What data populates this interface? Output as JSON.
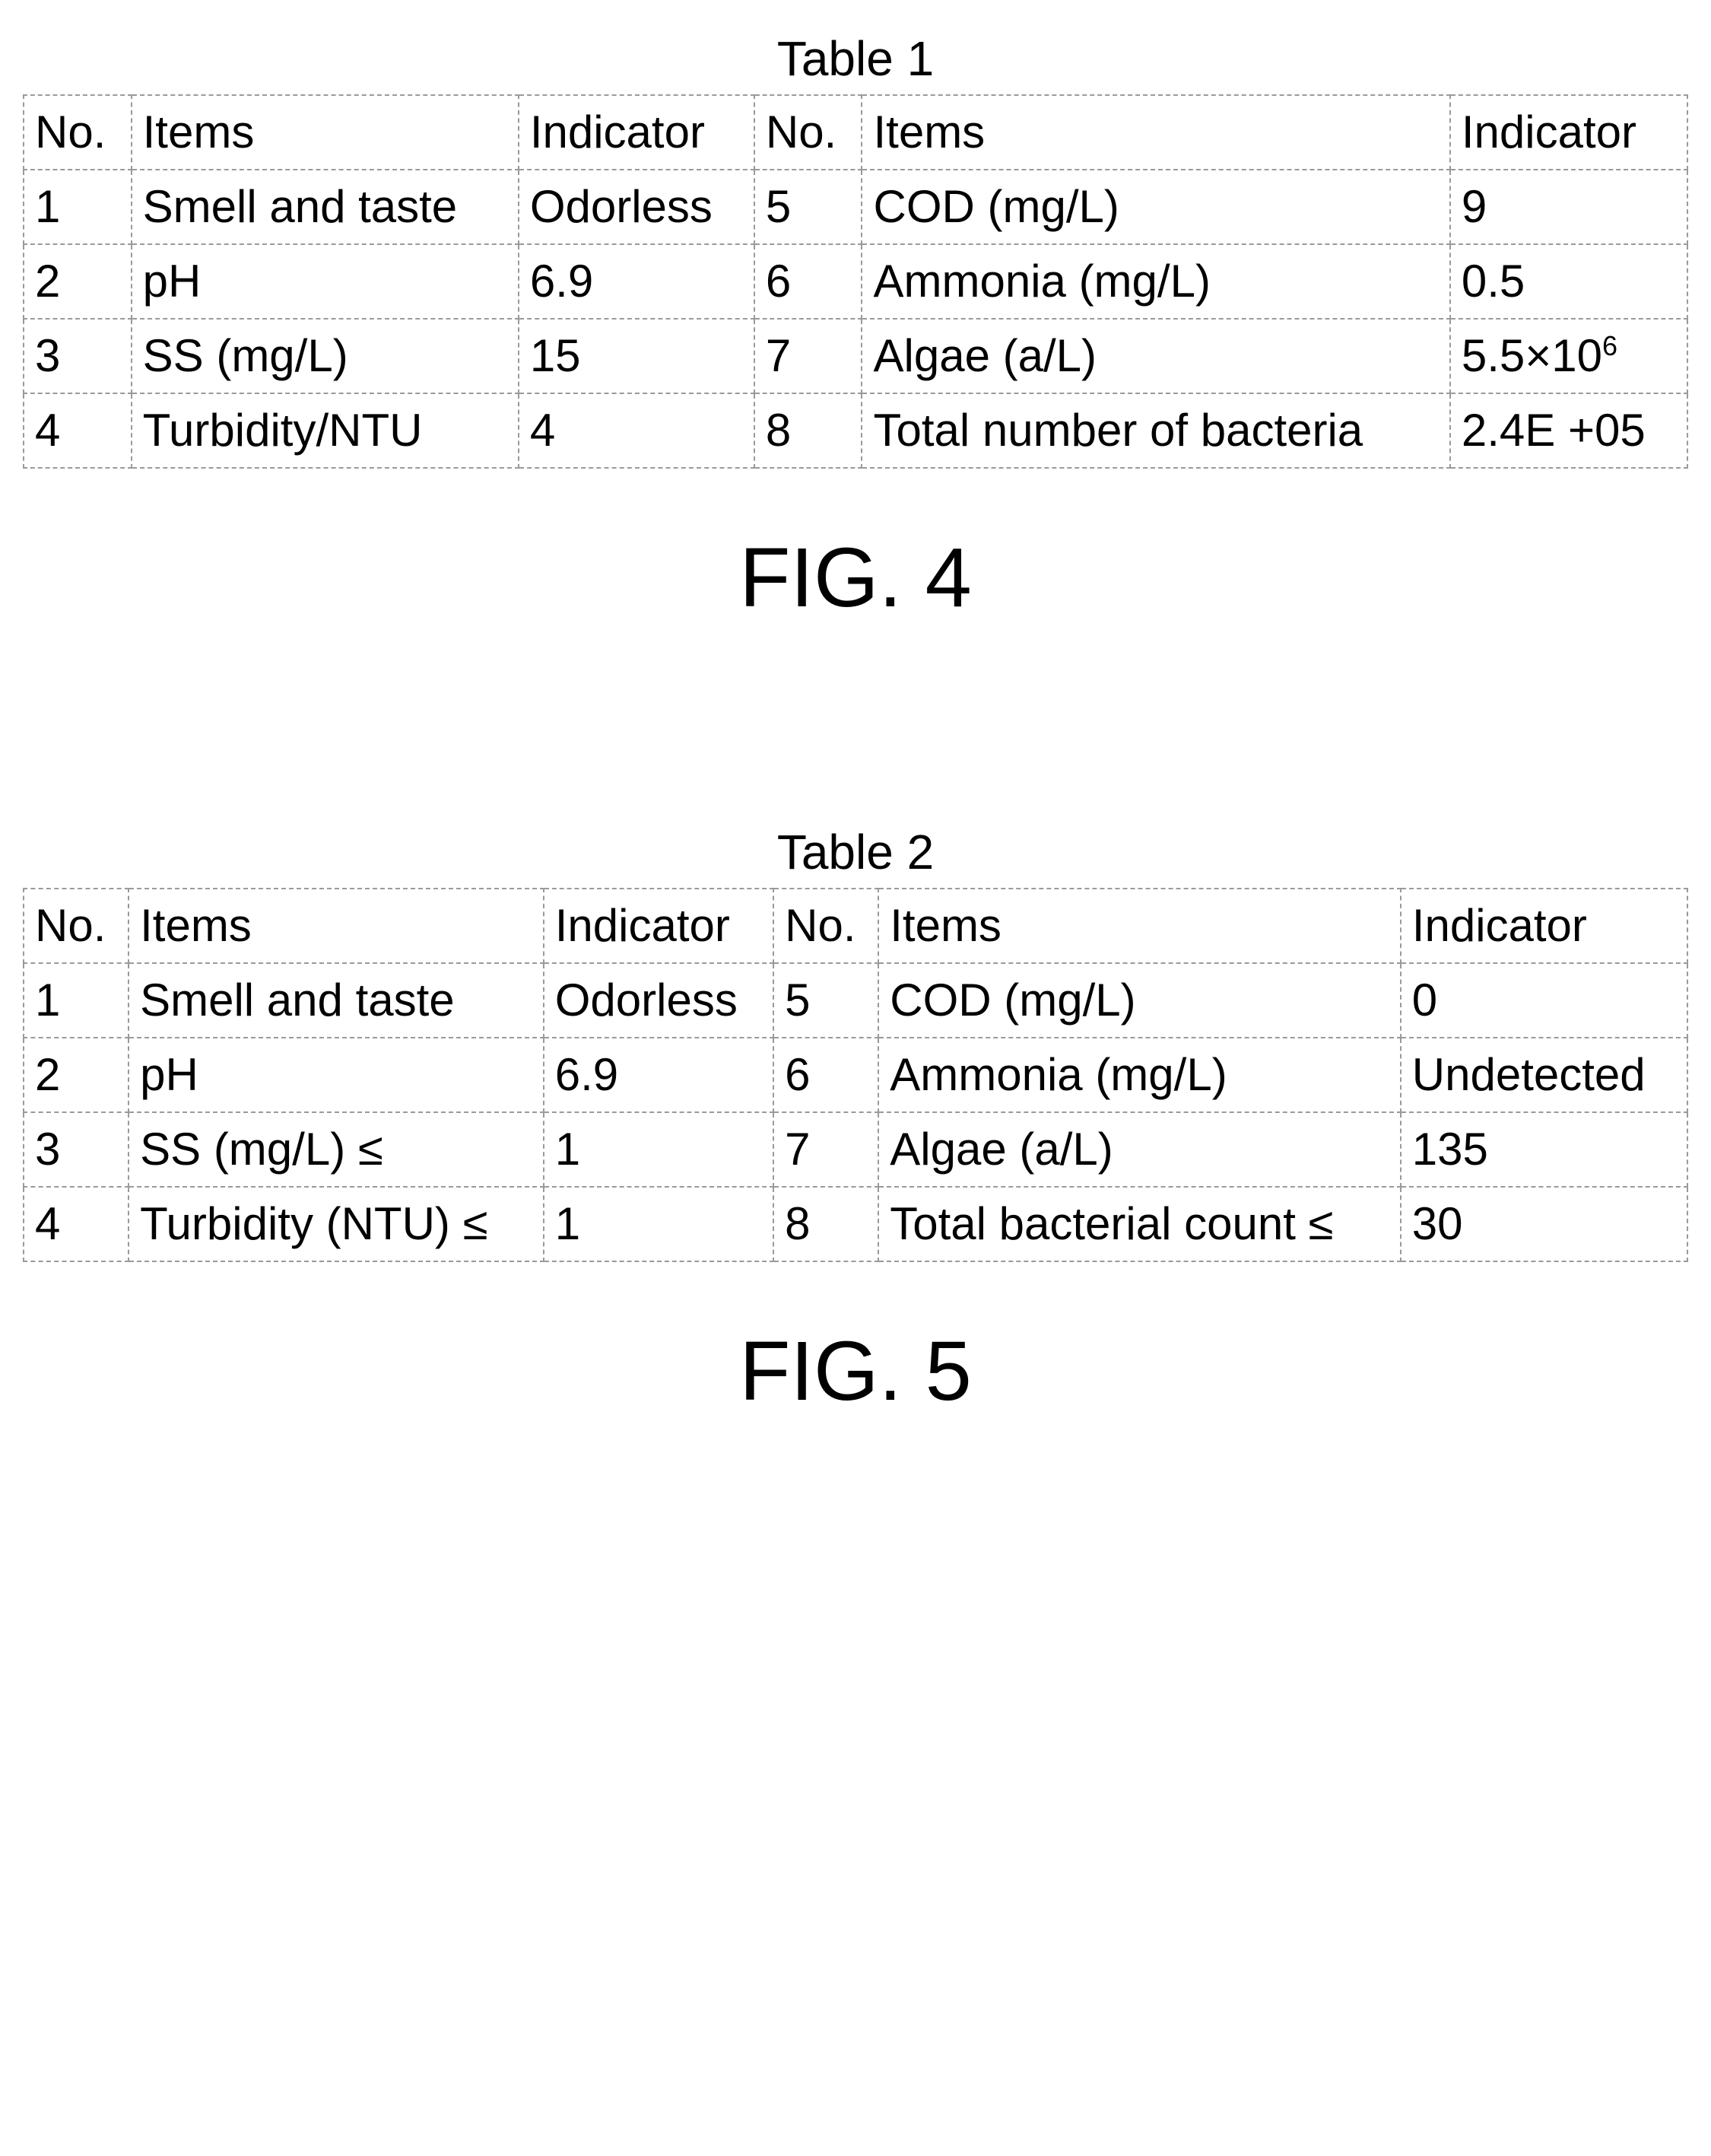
{
  "table1": {
    "caption": "Table 1",
    "fig": "FIG. 4",
    "header": [
      "No.",
      "Items",
      "Indicator",
      "No.",
      "Items",
      "Indicator"
    ],
    "rows": [
      [
        "1",
        "Smell and taste",
        "Odorless",
        "5",
        "COD (mg/L)",
        "9"
      ],
      [
        "2",
        "pH",
        "6.9",
        "6",
        "Ammonia (mg/L)",
        "0.5"
      ],
      [
        "3",
        "SS (mg/L)",
        "15",
        "7",
        "Algae (a/L)",
        "5.5×10⁶"
      ],
      [
        "4",
        "Turbidity/NTU",
        "4",
        "8",
        "Total number of bacteria",
        "2.4E +05"
      ]
    ]
  },
  "table2": {
    "caption": "Table 2",
    "fig": "FIG. 5",
    "header": [
      "No.",
      "Items",
      "Indicator",
      "No.",
      "Items",
      "Indicator"
    ],
    "rows": [
      [
        "1",
        "Smell and taste",
        "Odorless",
        "5",
        "COD (mg/L)",
        "0"
      ],
      [
        "2",
        "pH",
        "6.9",
        "6",
        "Ammonia (mg/L)",
        "Undetected"
      ],
      [
        "3",
        "SS (mg/L) ≤",
        "1",
        "7",
        "Algae (a/L)",
        "135"
      ],
      [
        "4",
        "Turbidity (NTU) ≤",
        "1",
        "8",
        "Total bacterial count ≤",
        "30"
      ]
    ]
  }
}
